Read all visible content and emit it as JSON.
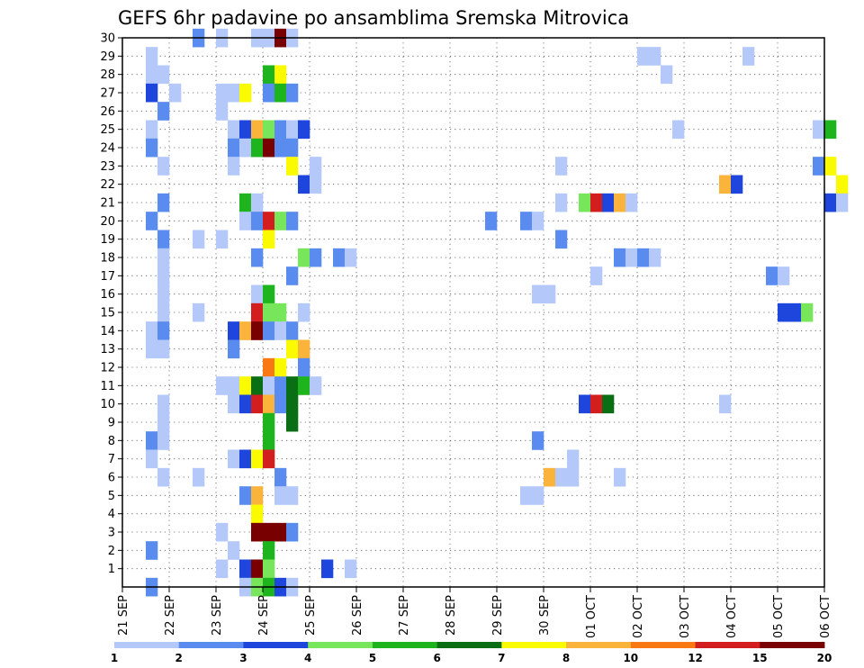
{
  "chart_data": {
    "type": "heatmap",
    "title": "GEFS 6hr padavine po ansamblima Sremska Mitrovica",
    "x_tick_labels": [
      "21 SEP",
      "22 SEP",
      "23 SEP",
      "24 SEP",
      "25 SEP",
      "26 SEP",
      "27 SEP",
      "28 SEP",
      "29 SEP",
      "30 SEP",
      "01 OCT",
      "02 OCT",
      "03 OCT",
      "04 OCT",
      "05 OCT",
      "06 OCT"
    ],
    "y_tick_labels": [
      "1",
      "2",
      "3",
      "4",
      "5",
      "6",
      "7",
      "8",
      "9",
      "10",
      "11",
      "12",
      "13",
      "14",
      "15",
      "16",
      "17",
      "18",
      "19",
      "20",
      "21",
      "22",
      "23",
      "24",
      "25",
      "26",
      "27",
      "28",
      "29",
      "30"
    ],
    "xlim_days": [
      0,
      15
    ],
    "ylim_members": [
      0,
      30
    ],
    "time_step_hours": 6,
    "grid": true,
    "colorbar": {
      "labels": [
        "1",
        "2",
        "3",
        "4",
        "5",
        "6",
        "7",
        "8",
        "10",
        "12",
        "15",
        "20"
      ],
      "colors": [
        "#b4c8fa",
        "#5a8cf0",
        "#1e46dc",
        "#78e65a",
        "#1eb41e",
        "#0a6e14",
        "#fafa00",
        "#fab43c",
        "#fa7814",
        "#d21e1e",
        "#780000"
      ]
    },
    "cells": [
      [
        1.5,
        30,
        1
      ],
      [
        2,
        30,
        0
      ],
      [
        2.75,
        30,
        0
      ],
      [
        3.0,
        30,
        0
      ],
      [
        3.25,
        30,
        10
      ],
      [
        3.5,
        30,
        0
      ],
      [
        0.5,
        29,
        0
      ],
      [
        11.0,
        29,
        0
      ],
      [
        11.25,
        29,
        0
      ],
      [
        13.25,
        29,
        0
      ],
      [
        0.5,
        28,
        0
      ],
      [
        0.75,
        28,
        0
      ],
      [
        3.0,
        28,
        4
      ],
      [
        3.25,
        28,
        6
      ],
      [
        11.5,
        28,
        0
      ],
      [
        0.5,
        27,
        2
      ],
      [
        1.0,
        27,
        0
      ],
      [
        2.0,
        27,
        0
      ],
      [
        2.25,
        27,
        0
      ],
      [
        2.5,
        27,
        6
      ],
      [
        3.0,
        27,
        1
      ],
      [
        3.25,
        27,
        4
      ],
      [
        3.5,
        27,
        1
      ],
      [
        0.75,
        26,
        1
      ],
      [
        2.0,
        26,
        0
      ],
      [
        0.5,
        25,
        0
      ],
      [
        2.25,
        25,
        0
      ],
      [
        2.5,
        25,
        2
      ],
      [
        2.75,
        25,
        7
      ],
      [
        3.0,
        25,
        3
      ],
      [
        3.25,
        25,
        1
      ],
      [
        3.5,
        25,
        0
      ],
      [
        3.75,
        25,
        2
      ],
      [
        11.75,
        25,
        0
      ],
      [
        14.75,
        25,
        0
      ],
      [
        15.0,
        25,
        4
      ],
      [
        0.5,
        24,
        1
      ],
      [
        2.25,
        24,
        1
      ],
      [
        2.5,
        24,
        0
      ],
      [
        2.75,
        24,
        4
      ],
      [
        3.0,
        24,
        10
      ],
      [
        3.25,
        24,
        1
      ],
      [
        3.5,
        24,
        1
      ],
      [
        0.75,
        23,
        0
      ],
      [
        2.25,
        23,
        0
      ],
      [
        3.5,
        23,
        6
      ],
      [
        4.0,
        23,
        0
      ],
      [
        9.25,
        23,
        0
      ],
      [
        14.75,
        23,
        1
      ],
      [
        15.0,
        23,
        6
      ],
      [
        3.75,
        22,
        2
      ],
      [
        4.0,
        22,
        0
      ],
      [
        12.75,
        22,
        7
      ],
      [
        13.0,
        22,
        2
      ],
      [
        15.25,
        22,
        6
      ],
      [
        0.75,
        21,
        1
      ],
      [
        2.5,
        21,
        4
      ],
      [
        2.75,
        21,
        0
      ],
      [
        9.25,
        21,
        0
      ],
      [
        9.75,
        21,
        3
      ],
      [
        10.0,
        21,
        9
      ],
      [
        10.25,
        21,
        2
      ],
      [
        10.5,
        21,
        7
      ],
      [
        10.75,
        21,
        0
      ],
      [
        15.0,
        21,
        2
      ],
      [
        15.25,
        21,
        0
      ],
      [
        0.5,
        20,
        1
      ],
      [
        2.5,
        20,
        0
      ],
      [
        2.75,
        20,
        1
      ],
      [
        3.0,
        20,
        9
      ],
      [
        3.25,
        20,
        3
      ],
      [
        3.5,
        20,
        1
      ],
      [
        7.75,
        20,
        1
      ],
      [
        8.5,
        20,
        1
      ],
      [
        8.75,
        20,
        0
      ],
      [
        0.75,
        19,
        1
      ],
      [
        1.5,
        19,
        0
      ],
      [
        2.0,
        19,
        0
      ],
      [
        3.0,
        19,
        6
      ],
      [
        9.25,
        19,
        1
      ],
      [
        0.75,
        18,
        0
      ],
      [
        2.75,
        18,
        1
      ],
      [
        3.75,
        18,
        3
      ],
      [
        4.0,
        18,
        1
      ],
      [
        4.5,
        18,
        1
      ],
      [
        4.75,
        18,
        0
      ],
      [
        10.5,
        18,
        1
      ],
      [
        10.75,
        18,
        0
      ],
      [
        11.0,
        18,
        1
      ],
      [
        11.25,
        18,
        0
      ],
      [
        0.75,
        17,
        0
      ],
      [
        3.5,
        17,
        1
      ],
      [
        10.0,
        17,
        0
      ],
      [
        13.75,
        17,
        1
      ],
      [
        14.0,
        17,
        0
      ],
      [
        0.75,
        16,
        0
      ],
      [
        2.75,
        16,
        0
      ],
      [
        3.0,
        16,
        4
      ],
      [
        8.75,
        16,
        0
      ],
      [
        9.0,
        16,
        0
      ],
      [
        0.75,
        15,
        0
      ],
      [
        1.5,
        15,
        0
      ],
      [
        2.75,
        15,
        9
      ],
      [
        3.0,
        15,
        3
      ],
      [
        3.25,
        15,
        3
      ],
      [
        3.75,
        15,
        0
      ],
      [
        14.0,
        15,
        2
      ],
      [
        14.25,
        15,
        2
      ],
      [
        14.5,
        15,
        3
      ],
      [
        0.5,
        14,
        0
      ],
      [
        0.75,
        14,
        1
      ],
      [
        2.25,
        14,
        2
      ],
      [
        2.5,
        14,
        7
      ],
      [
        2.75,
        14,
        10
      ],
      [
        3.0,
        14,
        1
      ],
      [
        3.25,
        14,
        0
      ],
      [
        3.5,
        14,
        1
      ],
      [
        0.5,
        13,
        0
      ],
      [
        0.75,
        13,
        0
      ],
      [
        2.25,
        13,
        1
      ],
      [
        3.5,
        13,
        6
      ],
      [
        3.75,
        13,
        7
      ],
      [
        3.0,
        12,
        8
      ],
      [
        3.25,
        12,
        6
      ],
      [
        3.75,
        12,
        1
      ],
      [
        2.0,
        11,
        0
      ],
      [
        2.25,
        11,
        0
      ],
      [
        2.5,
        11,
        6
      ],
      [
        2.75,
        11,
        5
      ],
      [
        3.0,
        11,
        0
      ],
      [
        3.25,
        11,
        1
      ],
      [
        3.5,
        11,
        5
      ],
      [
        3.75,
        11,
        4
      ],
      [
        4.0,
        11,
        0
      ],
      [
        0.75,
        10,
        0
      ],
      [
        2.25,
        10,
        0
      ],
      [
        2.5,
        10,
        2
      ],
      [
        2.75,
        10,
        9
      ],
      [
        3.0,
        10,
        7
      ],
      [
        3.25,
        10,
        1
      ],
      [
        3.5,
        10,
        5
      ],
      [
        9.75,
        10,
        2
      ],
      [
        10.0,
        10,
        9
      ],
      [
        10.25,
        10,
        5
      ],
      [
        12.75,
        10,
        0
      ],
      [
        0.75,
        9,
        0
      ],
      [
        3.0,
        9,
        4
      ],
      [
        3.5,
        9,
        5
      ],
      [
        0.5,
        8,
        1
      ],
      [
        0.75,
        8,
        0
      ],
      [
        3.0,
        8,
        4
      ],
      [
        8.75,
        8,
        1
      ],
      [
        0.5,
        7,
        0
      ],
      [
        2.25,
        7,
        0
      ],
      [
        2.5,
        7,
        2
      ],
      [
        2.75,
        7,
        6
      ],
      [
        3.0,
        7,
        9
      ],
      [
        9.5,
        7,
        0
      ],
      [
        0.75,
        6,
        0
      ],
      [
        1.5,
        6,
        0
      ],
      [
        3.25,
        6,
        1
      ],
      [
        9.0,
        6,
        7
      ],
      [
        9.25,
        6,
        0
      ],
      [
        9.5,
        6,
        0
      ],
      [
        10.5,
        6,
        0
      ],
      [
        2.5,
        5,
        1
      ],
      [
        2.75,
        5,
        7
      ],
      [
        3.25,
        5,
        0
      ],
      [
        3.5,
        5,
        0
      ],
      [
        8.5,
        5,
        0
      ],
      [
        8.75,
        5,
        0
      ],
      [
        2.75,
        4,
        6
      ],
      [
        2.0,
        3,
        0
      ],
      [
        2.75,
        3,
        10
      ],
      [
        3.0,
        3,
        10
      ],
      [
        3.25,
        3,
        10
      ],
      [
        3.5,
        3,
        1
      ],
      [
        0.5,
        2,
        1
      ],
      [
        2.25,
        2,
        0
      ],
      [
        3.0,
        2,
        4
      ],
      [
        2.0,
        1,
        0
      ],
      [
        2.5,
        1,
        2
      ],
      [
        2.75,
        1,
        10
      ],
      [
        3.0,
        1,
        3
      ],
      [
        4.25,
        1,
        2
      ],
      [
        4.75,
        1,
        0
      ],
      [
        0.5,
        0,
        1
      ],
      [
        2.5,
        0,
        0
      ],
      [
        2.75,
        0,
        3
      ],
      [
        3.0,
        0,
        4
      ],
      [
        3.25,
        0,
        2
      ],
      [
        3.5,
        0,
        0
      ]
    ]
  }
}
